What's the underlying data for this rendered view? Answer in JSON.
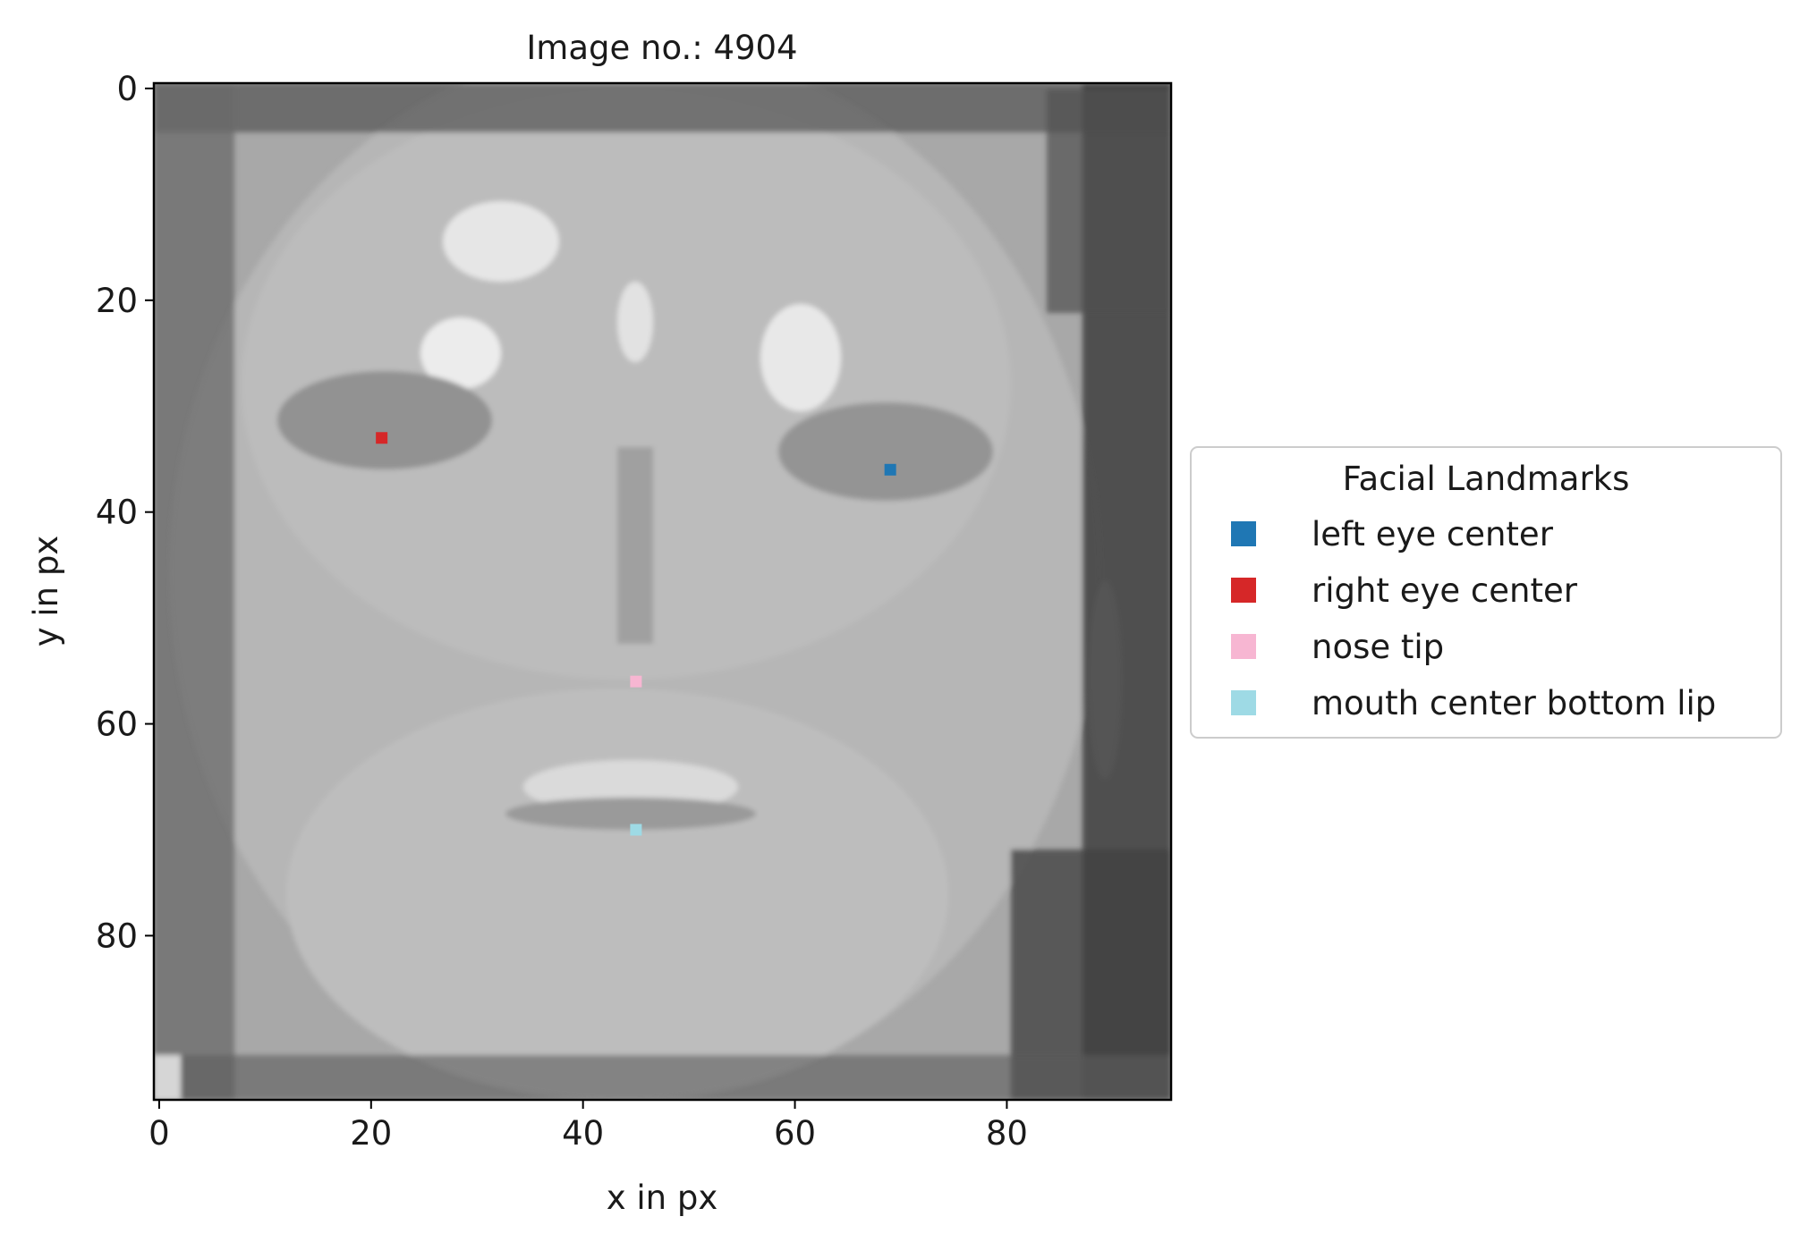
{
  "chart_data": {
    "type": "scatter",
    "title": "Image no.: 4904",
    "xlabel": "x in px",
    "ylabel": "y in px",
    "background": "grayscale face image (96x96 px)",
    "xlim": [
      -0.5,
      95.5
    ],
    "ylim": [
      95.5,
      -0.5
    ],
    "x_ticks": [
      0,
      20,
      40,
      60,
      80
    ],
    "y_ticks": [
      0,
      20,
      40,
      60,
      80
    ],
    "grid": false,
    "legend": {
      "title": "Facial Landmarks",
      "placement": "center-right outside"
    },
    "series": [
      {
        "name": "left eye center",
        "color": "#1f77b4",
        "x": [
          69
        ],
        "y": [
          36
        ]
      },
      {
        "name": "right eye center",
        "color": "#d62728",
        "x": [
          21
        ],
        "y": [
          33
        ]
      },
      {
        "name": "nose tip",
        "color": "#f7b6d2",
        "x": [
          45
        ],
        "y": [
          56
        ]
      },
      {
        "name": "mouth center bottom lip",
        "color": "#9edae5",
        "x": [
          45
        ],
        "y": [
          70
        ]
      }
    ]
  }
}
